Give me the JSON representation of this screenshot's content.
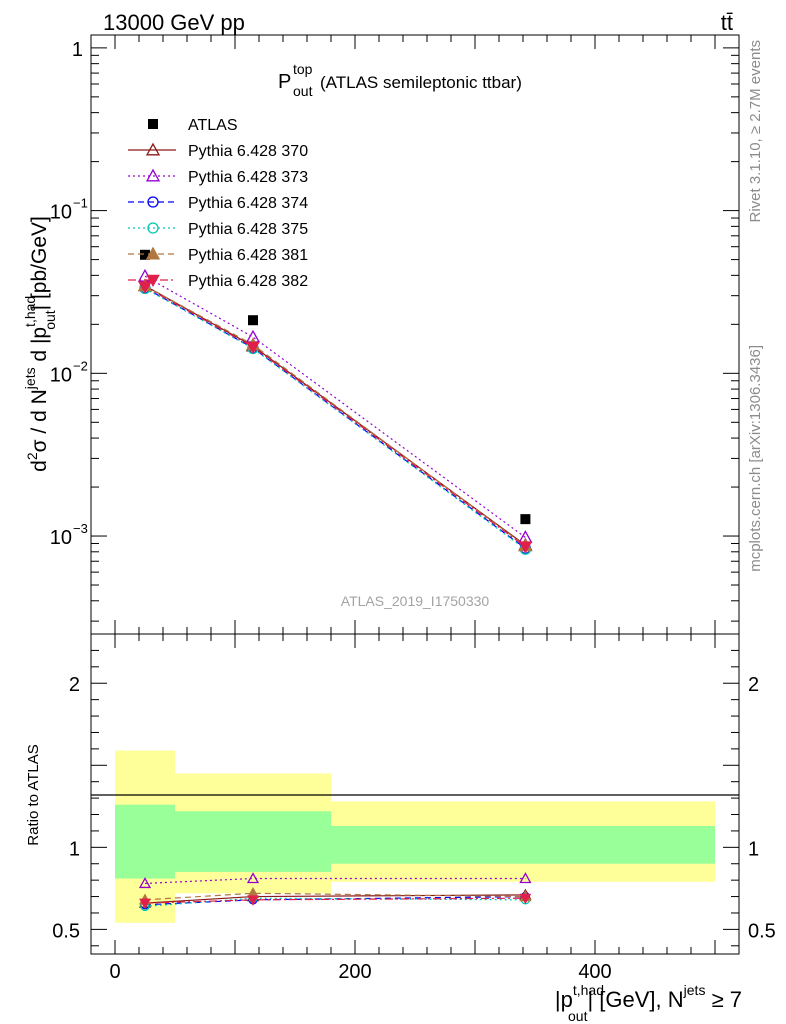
{
  "header": {
    "energy_label": "13000 GeV pp",
    "process_label": "tt̄"
  },
  "side_labels": {
    "rivet": "Rivet 3.1.10, ≥ 2.7M events",
    "mcplots": "mcplots.cern.ch [arXiv:1306.3436]"
  },
  "chart_data": [
    {
      "panel": "main",
      "type": "scatter",
      "title": {
        "main": "P",
        "sup": "top",
        "sub": "out",
        "rest": " (ATLAS semileptonic ttbar)"
      },
      "watermark": "ATLAS_2019_I1750330",
      "ylabel": "d²σ / d N^jets d |p_out^t,had| [pb/GeV]",
      "yscale": "log",
      "ylim": [
        0.00025,
        1.2
      ],
      "y_ticks": [
        "10^-3",
        "10^-2",
        "10^-1",
        "1"
      ],
      "legend_position": "top-left",
      "x": [
        25,
        115,
        342
      ],
      "series": [
        {
          "name": "ATLAS",
          "color": "#000000",
          "marker": "square",
          "line": "none",
          "values": [
            0.0535,
            0.0212,
            0.00127
          ]
        },
        {
          "name": "Pythia 6.428 370",
          "color": "#8b1a1a",
          "marker": "triangle-open",
          "line": "solid",
          "values": [
            0.0345,
            0.0147,
            0.00088
          ]
        },
        {
          "name": "Pythia 6.428 373",
          "color": "#9400d3",
          "marker": "triangle-open",
          "line": "dotted",
          "values": [
            0.0395,
            0.0167,
            0.00098
          ]
        },
        {
          "name": "Pythia 6.428 374",
          "color": "#0000ff",
          "marker": "circle-open",
          "line": "dashed",
          "values": [
            0.0335,
            0.0143,
            0.00084
          ]
        },
        {
          "name": "Pythia 6.428 375",
          "color": "#00c8b4",
          "marker": "circle-open",
          "line": "dotted",
          "values": [
            0.0332,
            0.0142,
            0.00083
          ]
        },
        {
          "name": "Pythia 6.428 381",
          "color": "#b07840",
          "marker": "triangle-filled",
          "line": "dashed",
          "values": [
            0.0345,
            0.015,
            0.00087
          ]
        },
        {
          "name": "Pythia 6.428 382",
          "color": "#e0204a",
          "marker": "triangle-down-filled",
          "line": "dashdot",
          "values": [
            0.034,
            0.0145,
            0.00086
          ]
        }
      ]
    },
    {
      "panel": "ratio",
      "type": "scatter",
      "ylabel": "Ratio to ATLAS",
      "xlabel": "|p_out^t,had| [GeV], N^jets ≥ 7",
      "ylim": [
        0.35,
        2.3
      ],
      "xlim": [
        -20,
        520
      ],
      "x_ticks": [
        "0",
        "200",
        "400"
      ],
      "y_ticks": [
        "0.5",
        "1",
        "2"
      ],
      "bands": [
        {
          "x0": 0,
          "x1": 50,
          "inner": [
            0.81,
            1.26
          ],
          "outer": [
            0.54,
            1.59
          ]
        },
        {
          "x0": 50,
          "x1": 180,
          "inner": [
            0.85,
            1.22
          ],
          "outer": [
            0.72,
            1.45
          ]
        },
        {
          "x0": 180,
          "x1": 500,
          "inner": [
            0.9,
            1.13
          ],
          "outer": [
            0.79,
            1.28
          ]
        }
      ],
      "x": [
        25,
        115,
        342
      ],
      "series": [
        {
          "name": "Pythia 6.428 370",
          "values": [
            0.66,
            0.7,
            0.71
          ]
        },
        {
          "name": "Pythia 6.428 373",
          "values": [
            0.78,
            0.81,
            0.81
          ]
        },
        {
          "name": "Pythia 6.428 374",
          "values": [
            0.65,
            0.68,
            0.7
          ]
        },
        {
          "name": "Pythia 6.428 375",
          "values": [
            0.64,
            0.69,
            0.68
          ]
        },
        {
          "name": "Pythia 6.428 381",
          "values": [
            0.68,
            0.72,
            0.7
          ]
        },
        {
          "name": "Pythia 6.428 382",
          "values": [
            0.66,
            0.68,
            0.69
          ]
        }
      ]
    }
  ]
}
